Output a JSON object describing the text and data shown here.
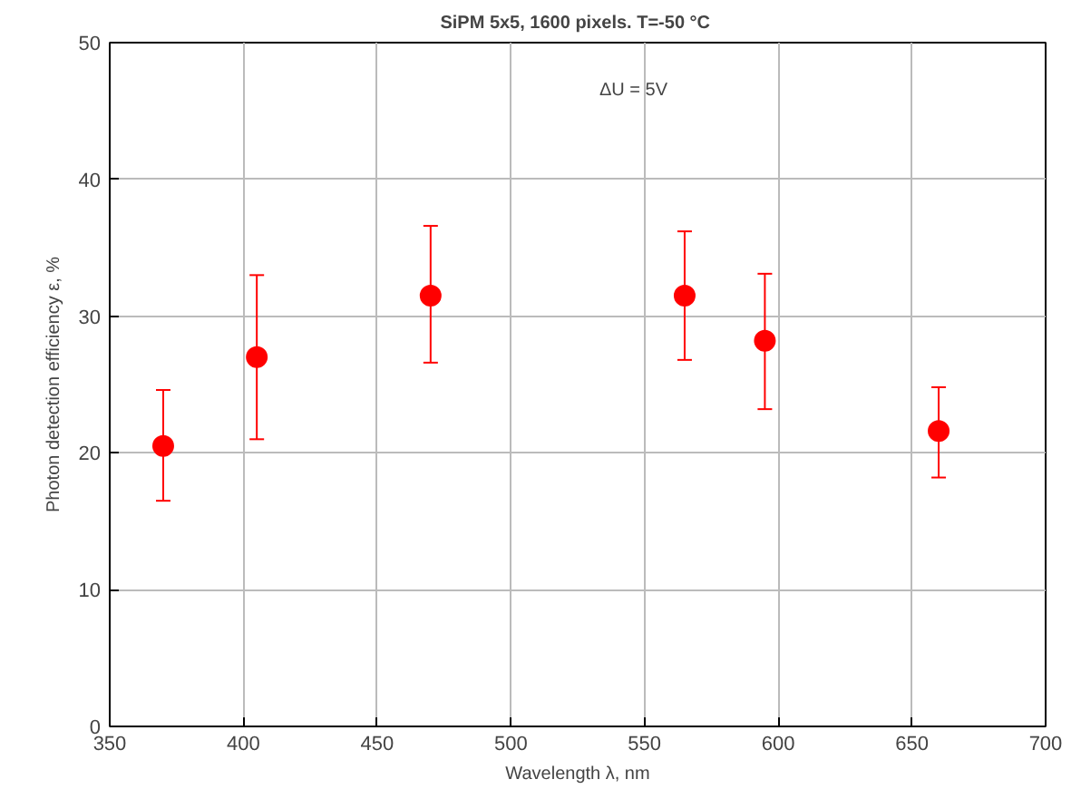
{
  "chart_data": {
    "type": "scatter",
    "title": "SiPM 5x5, 1600 pixels.  T=-50 °C",
    "xlabel": "Wavelength λ, nm",
    "ylabel": "Photon detection efficiency ε, %",
    "x": [
      370,
      405,
      470,
      565,
      595,
      660
    ],
    "series": [
      {
        "color": "#ff0000",
        "values": [
          20.5,
          27,
          31.5,
          31.5,
          28.2,
          21.6
        ],
        "errors": [
          [
            16.5,
            24.6
          ],
          [
            21,
            33
          ],
          [
            26.6,
            36.6
          ],
          [
            26.8,
            36.2
          ],
          [
            23.2,
            33.1
          ],
          [
            18.2,
            24.8
          ]
        ]
      }
    ],
    "marker": "circle",
    "annotations": [
      "ΔU = 5V"
    ],
    "xlim": [
      350,
      700
    ],
    "xticks": [
      350,
      400,
      450,
      500,
      550,
      600,
      650,
      700
    ],
    "ylim": [
      0,
      50
    ],
    "yticks": [
      0,
      10,
      20,
      30,
      40,
      50
    ],
    "grid": true
  }
}
